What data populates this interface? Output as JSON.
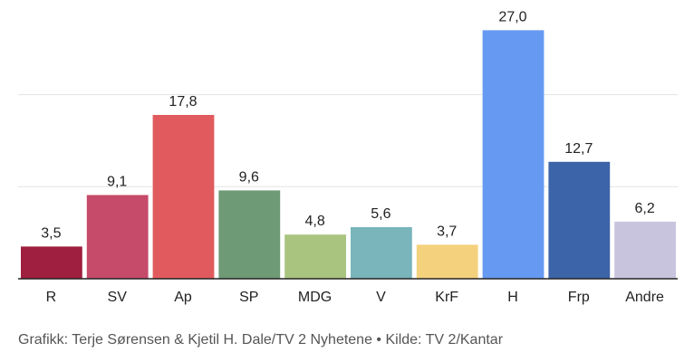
{
  "chart_data": {
    "type": "bar",
    "categories": [
      "R",
      "SV",
      "Ap",
      "SP",
      "MDG",
      "V",
      "KrF",
      "H",
      "Frp",
      "Andre"
    ],
    "values": [
      3.5,
      9.1,
      17.8,
      9.6,
      4.8,
      5.6,
      3.7,
      27.0,
      12.7,
      6.2
    ],
    "value_labels": [
      "3,5",
      "9,1",
      "17,8",
      "9,6",
      "4,8",
      "5,6",
      "3,7",
      "27,0",
      "12,7",
      "6,2"
    ],
    "colors": [
      "#9e1f3f",
      "#c64a6a",
      "#e15b5e",
      "#6f9a76",
      "#a9c47f",
      "#79b5bb",
      "#f4d27d",
      "#6699f2",
      "#3c64a8",
      "#c9c4de"
    ],
    "ylim": [
      0,
      30
    ],
    "gridlines": [
      10,
      20
    ],
    "grid": true,
    "legend": "none"
  },
  "source": "Grafikk: Terje Sørensen & Kjetil H. Dale/TV 2 Nyhetene • Kilde: TV 2/Kantar"
}
